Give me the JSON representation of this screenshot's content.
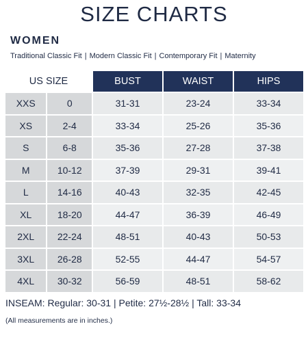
{
  "title": "SIZE CHARTS",
  "section": "WOMEN",
  "fits": [
    "Traditional Classic Fit",
    "Modern Classic Fit",
    "Contemporary Fit",
    "Maternity"
  ],
  "fit_separator": "|",
  "headers": {
    "us_size": "US SIZE",
    "bust": "BUST",
    "waist": "WAIST",
    "hips": "HIPS"
  },
  "rows": [
    {
      "size": "XXS",
      "num": "0",
      "bust": "31-31",
      "waist": "23-24",
      "hips": "33-34"
    },
    {
      "size": "XS",
      "num": "2-4",
      "bust": "33-34",
      "waist": "25-26",
      "hips": "35-36"
    },
    {
      "size": "S",
      "num": "6-8",
      "bust": "35-36",
      "waist": "27-28",
      "hips": "37-38"
    },
    {
      "size": "M",
      "num": "10-12",
      "bust": "37-39",
      "waist": "29-31",
      "hips": "39-41"
    },
    {
      "size": "L",
      "num": "14-16",
      "bust": "40-43",
      "waist": "32-35",
      "hips": "42-45"
    },
    {
      "size": "XL",
      "num": "18-20",
      "bust": "44-47",
      "waist": "36-39",
      "hips": "46-49"
    },
    {
      "size": "2XL",
      "num": "22-24",
      "bust": "48-51",
      "waist": "40-43",
      "hips": "50-53"
    },
    {
      "size": "3XL",
      "num": "26-28",
      "bust": "52-55",
      "waist": "44-47",
      "hips": "54-57"
    },
    {
      "size": "4XL",
      "num": "30-32",
      "bust": "56-59",
      "waist": "48-51",
      "hips": "58-62"
    }
  ],
  "inseam": "INSEAM:  Regular: 30-31  |  Petite: 27½-28½  |  Tall: 33-34",
  "note": "(All measurements are in inches.)",
  "colors": {
    "header_bg": "#213259",
    "text": "#1f2a44",
    "size_cell": "#d6d8da",
    "value_cell": "#e8eaeb"
  }
}
